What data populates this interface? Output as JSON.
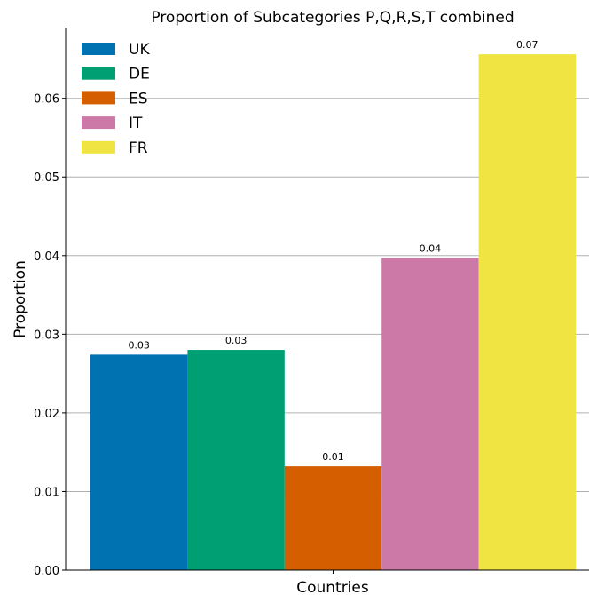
{
  "chart_data": {
    "type": "bar",
    "title": "Proportion of Subcategories P,Q,R,S,T combined",
    "xlabel": "Countries",
    "ylabel": "Proportion",
    "ylim": [
      0,
      0.069
    ],
    "yticks": [
      0.0,
      0.01,
      0.02,
      0.03,
      0.04,
      0.05,
      0.06
    ],
    "ytick_labels": [
      "0.00",
      "0.01",
      "0.02",
      "0.03",
      "0.04",
      "0.05",
      "0.06"
    ],
    "grid": true,
    "legend_position": "top-left",
    "series": [
      {
        "name": "UK",
        "value": 0.0274,
        "label": "0.03",
        "color": "#0072b2"
      },
      {
        "name": "DE",
        "value": 0.028,
        "label": "0.03",
        "color": "#009e73"
      },
      {
        "name": "ES",
        "value": 0.0132,
        "label": "0.01",
        "color": "#d55e00"
      },
      {
        "name": "IT",
        "value": 0.0397,
        "label": "0.04",
        "color": "#cc79a7"
      },
      {
        "name": "FR",
        "value": 0.0656,
        "label": "0.07",
        "color": "#f0e442"
      }
    ]
  }
}
